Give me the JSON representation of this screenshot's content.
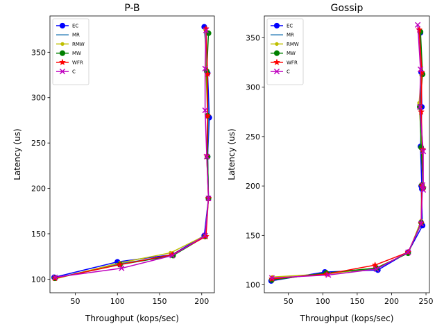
{
  "chart_data": [
    {
      "type": "line",
      "title": "P-B",
      "xlabel": "Throughput (kops/sec)",
      "ylabel": "Latency (us)",
      "xlim": [
        20,
        215
      ],
      "ylim": [
        85,
        390
      ],
      "xticks": [
        50,
        100,
        150,
        200
      ],
      "yticks": [
        100,
        150,
        200,
        250,
        300,
        350
      ],
      "legend": "top-left",
      "series": [
        {
          "name": "EC",
          "color": "#0000ff",
          "marker": "circle",
          "x": [
            25,
            100,
            165,
            203,
            208,
            207,
            209,
            207,
            203
          ],
          "y": [
            102,
            119,
            127,
            148,
            189,
            235,
            278,
            327,
            378
          ]
        },
        {
          "name": "MR",
          "color": "#1f77b4",
          "marker": "none",
          "x": [
            26,
            103,
            165,
            204,
            208,
            207,
            208,
            206,
            204
          ],
          "y": [
            101,
            117,
            126,
            147,
            189,
            235,
            279,
            328,
            376
          ]
        },
        {
          "name": "RMW",
          "color": "#bfbf00",
          "marker": "dot",
          "x": [
            25,
            103,
            163,
            204,
            208,
            206,
            207,
            205,
            204
          ],
          "y": [
            100,
            118,
            129,
            148,
            189,
            234,
            281,
            330,
            375
          ]
        },
        {
          "name": "MW",
          "color": "#008000",
          "marker": "circle",
          "x": [
            26,
            103,
            166,
            204,
            208,
            207,
            207,
            206,
            208
          ],
          "y": [
            101,
            116,
            126,
            147,
            189,
            235,
            280,
            329,
            371
          ]
        },
        {
          "name": "WFR",
          "color": "#ff0000",
          "marker": "star",
          "x": [
            26,
            103,
            165,
            205,
            208,
            206,
            207,
            207,
            205
          ],
          "y": [
            101,
            116,
            127,
            147,
            189,
            236,
            280,
            326,
            376
          ]
        },
        {
          "name": "C",
          "color": "#bf00bf",
          "marker": "x",
          "x": [
            26,
            105,
            165,
            204,
            208,
            206,
            204,
            204,
            205
          ],
          "y": [
            102,
            112,
            126,
            148,
            189,
            235,
            286,
            332,
            374
          ]
        }
      ]
    },
    {
      "type": "line",
      "title": "Gossip",
      "xlabel": "Throughput (kops/sec)",
      "ylabel": "Latency (us)",
      "xlim": [
        15,
        255
      ],
      "ylim": [
        92,
        372
      ],
      "xticks": [
        50,
        100,
        150,
        200,
        250
      ],
      "yticks": [
        100,
        150,
        200,
        250,
        300,
        350
      ],
      "legend": "top-left",
      "series": [
        {
          "name": "EC",
          "color": "#0000ff",
          "marker": "circle",
          "x": [
            25,
            103,
            180,
            224,
            245,
            243,
            244,
            242,
            244,
            243,
            242
          ],
          "y": [
            104,
            113,
            115,
            133,
            160,
            200,
            197,
            240,
            280,
            315,
            355
          ]
        },
        {
          "name": "MR",
          "color": "#1f77b4",
          "marker": "none",
          "x": [
            26,
            105,
            178,
            224,
            244,
            243,
            246,
            244,
            242,
            244,
            241
          ],
          "y": [
            105,
            112,
            116,
            133,
            163,
            201,
            197,
            238,
            282,
            314,
            357
          ]
        },
        {
          "name": "RMW",
          "color": "#bfbf00",
          "marker": "dot",
          "x": [
            27,
            105,
            177,
            224,
            243,
            244,
            246,
            244,
            240,
            243,
            240
          ],
          "y": [
            108,
            111,
            117,
            132,
            165,
            200,
            198,
            237,
            284,
            312,
            358
          ]
        },
        {
          "name": "MW",
          "color": "#008000",
          "marker": "circle",
          "x": [
            26,
            105,
            178,
            224,
            243,
            244,
            246,
            243,
            241,
            245,
            242
          ],
          "y": [
            105,
            112,
            117,
            132,
            163,
            201,
            198,
            239,
            280,
            313,
            356
          ]
        },
        {
          "name": "WFR",
          "color": "#ff0000",
          "marker": "star",
          "x": [
            26,
            106,
            176,
            224,
            243,
            244,
            246,
            245,
            243,
            244,
            240
          ],
          "y": [
            106,
            111,
            120,
            133,
            162,
            200,
            198,
            237,
            275,
            315,
            358
          ]
        },
        {
          "name": "C",
          "color": "#bf00bf",
          "marker": "x",
          "x": [
            26,
            108,
            178,
            224,
            243,
            245,
            246,
            246,
            241,
            242,
            238
          ],
          "y": [
            107,
            110,
            116,
            133,
            162,
            201,
            196,
            235,
            280,
            318,
            363
          ]
        }
      ]
    }
  ]
}
